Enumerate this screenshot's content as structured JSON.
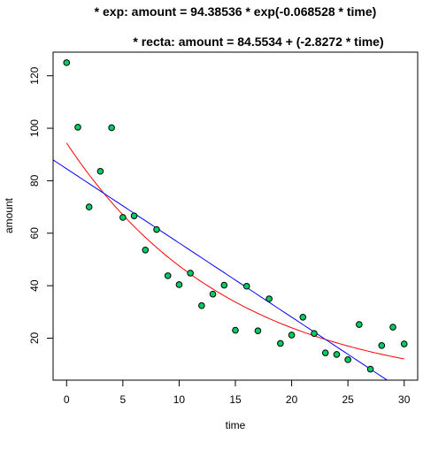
{
  "chart_data": {
    "type": "scatter",
    "title_lines": [
      "* exp: amount = 94.38536 * exp(-0.068528 * time)",
      "* recta: amount = 84.5534 + (-2.8272 * time)"
    ],
    "xlabel": "time",
    "ylabel": "amount",
    "xlim": [
      -1.2,
      31.2
    ],
    "ylim": [
      4,
      129
    ],
    "x_ticks": [
      0,
      5,
      10,
      15,
      20,
      25,
      30
    ],
    "y_ticks": [
      20,
      40,
      60,
      80,
      100,
      120
    ],
    "points": [
      {
        "x": 0,
        "y": 125
      },
      {
        "x": 1,
        "y": 100.4
      },
      {
        "x": 2,
        "y": 70
      },
      {
        "x": 3,
        "y": 83.6
      },
      {
        "x": 4,
        "y": 100.2
      },
      {
        "x": 5,
        "y": 66
      },
      {
        "x": 6,
        "y": 66.6
      },
      {
        "x": 7,
        "y": 53.6
      },
      {
        "x": 8,
        "y": 61.4
      },
      {
        "x": 9,
        "y": 43.8
      },
      {
        "x": 10,
        "y": 40.4
      },
      {
        "x": 11,
        "y": 44.8
      },
      {
        "x": 12,
        "y": 32.4
      },
      {
        "x": 13,
        "y": 36.8
      },
      {
        "x": 14,
        "y": 40.2
      },
      {
        "x": 15,
        "y": 23
      },
      {
        "x": 16,
        "y": 39.8
      },
      {
        "x": 17,
        "y": 22.8
      },
      {
        "x": 18,
        "y": 35
      },
      {
        "x": 19,
        "y": 18
      },
      {
        "x": 20,
        "y": 21.2
      },
      {
        "x": 21,
        "y": 28
      },
      {
        "x": 22,
        "y": 21.8
      },
      {
        "x": 23,
        "y": 14.4
      },
      {
        "x": 24,
        "y": 13.8
      },
      {
        "x": 25,
        "y": 11.8
      },
      {
        "x": 26,
        "y": 25.2
      },
      {
        "x": 27,
        "y": 8.2
      },
      {
        "x": 28,
        "y": 17.2
      },
      {
        "x": 29,
        "y": 24.2
      },
      {
        "x": 30,
        "y": 17.8
      }
    ],
    "point_fill": "#00cc66",
    "point_stroke": "#000000",
    "fits": [
      {
        "id": "exp",
        "model": "exponential",
        "a": 94.38536,
        "b": -0.068528,
        "x_range": [
          0,
          30
        ],
        "color": "#ff0000"
      },
      {
        "id": "recta",
        "model": "linear",
        "intercept": 84.5534,
        "slope": -2.8272,
        "x_range": [
          -1.2,
          31.2
        ],
        "color": "#0000ff"
      }
    ]
  }
}
